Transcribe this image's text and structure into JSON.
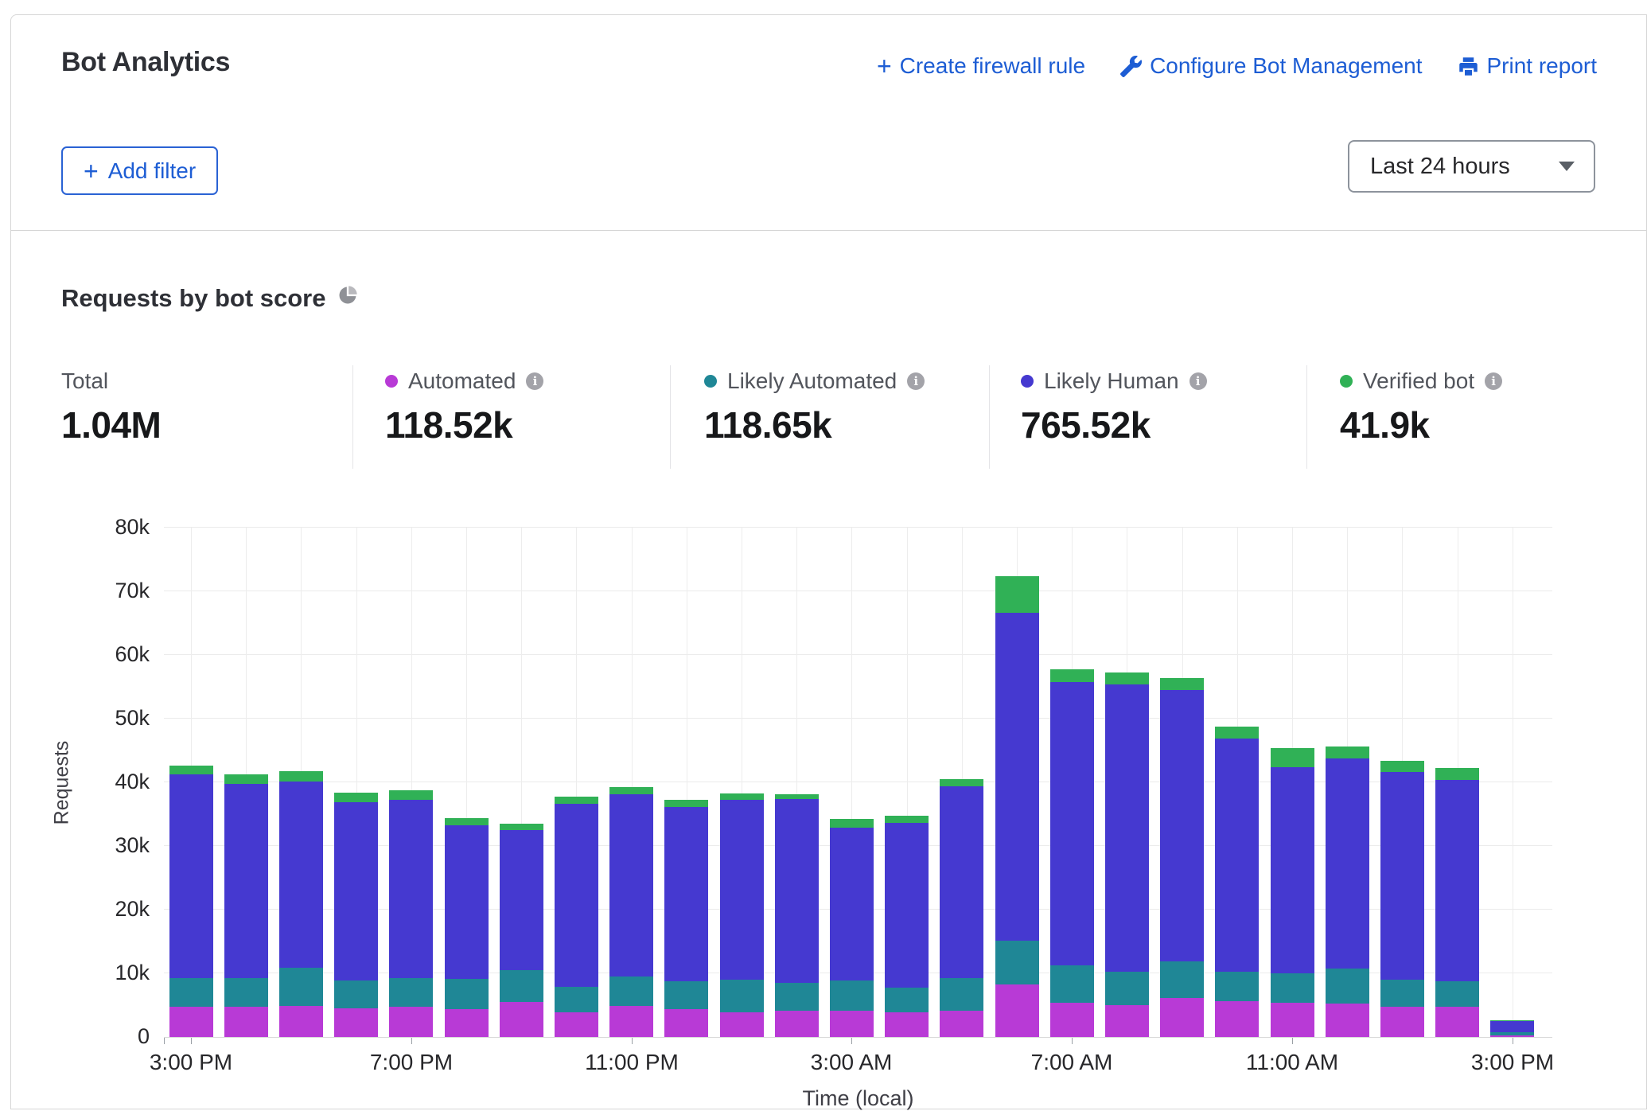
{
  "header": {
    "title": "Bot Analytics",
    "actions": [
      {
        "label": "Create firewall rule",
        "icon": "plus-icon"
      },
      {
        "label": "Configure Bot Management",
        "icon": "wrench-icon"
      },
      {
        "label": "Print report",
        "icon": "printer-icon"
      }
    ],
    "add_filter_label": "Add filter",
    "time_range_value": "Last 24 hours"
  },
  "section": {
    "title": "Requests by bot score"
  },
  "stats": {
    "total": {
      "label": "Total",
      "value": "1.04M"
    },
    "legend": [
      {
        "label": "Automated",
        "value": "118.52k",
        "color": "#b83ad6"
      },
      {
        "label": "Likely Automated",
        "value": "118.65k",
        "color": "#1f8796"
      },
      {
        "label": "Likely Human",
        "value": "765.52k",
        "color": "#4539d0"
      },
      {
        "label": "Verified bot",
        "value": "41.9k",
        "color": "#30b156"
      }
    ]
  },
  "chart_data": {
    "type": "bar",
    "stacked": true,
    "title": "Requests by bot score",
    "xlabel": "Time (local)",
    "ylabel": "Requests",
    "ylim": [
      0,
      80000
    ],
    "grid": true,
    "legend_position": "top",
    "ytick_labels": [
      "0",
      "10k",
      "20k",
      "30k",
      "40k",
      "50k",
      "60k",
      "70k",
      "80k"
    ],
    "x_axis_labels": [
      "3:00 PM",
      "7:00 PM",
      "11:00 PM",
      "3:00 AM",
      "7:00 AM",
      "11:00 AM",
      "3:00 PM"
    ],
    "label_every": 4,
    "categories": [
      "3:00 PM",
      "4:00 PM",
      "5:00 PM",
      "6:00 PM",
      "7:00 PM",
      "8:00 PM",
      "9:00 PM",
      "10:00 PM",
      "11:00 PM",
      "12:00 AM",
      "1:00 AM",
      "2:00 AM",
      "3:00 AM",
      "4:00 AM",
      "5:00 AM",
      "6:00 AM",
      "7:00 AM",
      "8:00 AM",
      "9:00 AM",
      "10:00 AM",
      "11:00 AM",
      "12:00 PM",
      "1:00 PM",
      "2:00 PM",
      "3:00 PM"
    ],
    "series": [
      {
        "name": "Automated",
        "color": "#b83ad6",
        "values": [
          4700,
          4700,
          4900,
          4500,
          4700,
          4400,
          5500,
          3900,
          4900,
          4400,
          3900,
          4100,
          4100,
          3900,
          4100,
          8300,
          5400,
          5000,
          6100,
          5600,
          5400,
          5300,
          4800,
          4700,
          300
        ]
      },
      {
        "name": "Likely Automated",
        "color": "#1f8796",
        "values": [
          4500,
          4600,
          6000,
          4400,
          4600,
          4700,
          5000,
          4000,
          4600,
          4400,
          5100,
          4400,
          4800,
          3800,
          5200,
          6800,
          5800,
          5200,
          5800,
          4700,
          4600,
          5500,
          4200,
          4100,
          400
        ]
      },
      {
        "name": "Likely Human",
        "color": "#4539d0",
        "values": [
          32100,
          30500,
          29200,
          28000,
          27900,
          24200,
          22000,
          28700,
          28600,
          27300,
          28300,
          28900,
          24000,
          25900,
          30100,
          51500,
          44600,
          45200,
          42600,
          36600,
          32400,
          32900,
          32600,
          31600,
          1800
        ]
      },
      {
        "name": "Verified bot",
        "color": "#30b156",
        "values": [
          1300,
          1400,
          1700,
          1500,
          1600,
          1100,
          1000,
          1200,
          1100,
          1100,
          900,
          700,
          1300,
          1200,
          1100,
          5800,
          1900,
          1900,
          1900,
          1900,
          3000,
          1900,
          1800,
          1900,
          100
        ]
      }
    ]
  }
}
